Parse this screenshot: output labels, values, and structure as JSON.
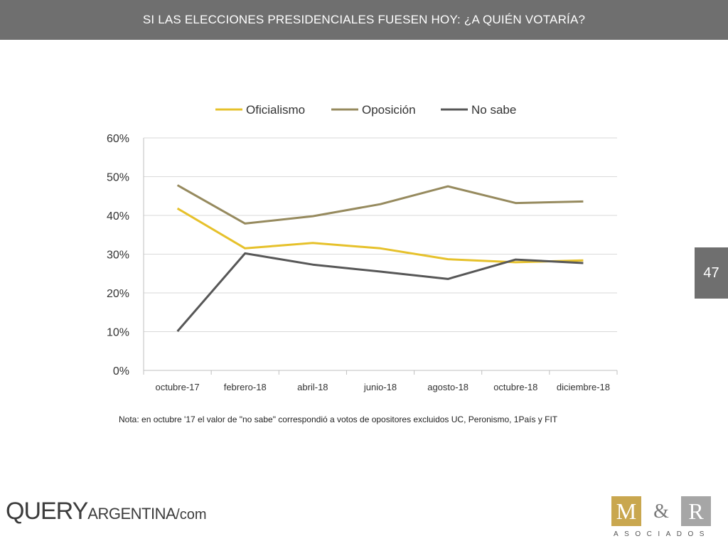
{
  "header": {
    "title": "SI LAS ELECCIONES PRESIDENCIALES FUESEN HOY: ¿A QUIÉN VOTARÍA?"
  },
  "page_number": "47",
  "note": "Nota: en octubre '17 el valor de \"no sabe\" correspondió a votos de opositores excluidos UC, Peronismo, 1País y FIT",
  "logos": {
    "query": {
      "main": "QUERY",
      "sub": "ARGENTINA",
      "domain": "/com"
    },
    "mr": {
      "m": "M",
      "amp": "&",
      "r": "R",
      "sub": "ASOCIADOS"
    }
  },
  "chart_data": {
    "type": "line",
    "title": "",
    "xlabel": "",
    "ylabel": "",
    "categories": [
      "octubre-17",
      "febrero-18",
      "abril-18",
      "junio-18",
      "agosto-18",
      "octubre-18",
      "diciembre-18"
    ],
    "ylim": [
      0,
      60
    ],
    "yticks": [
      "0%",
      "10%",
      "20%",
      "30%",
      "40%",
      "50%",
      "60%"
    ],
    "grid": true,
    "legend": "top",
    "series": [
      {
        "name": "Oficialismo",
        "color": "#e6c12b",
        "values": [
          41.8,
          31.5,
          32.9,
          31.5,
          28.7,
          27.9,
          28.4
        ]
      },
      {
        "name": "Oposición",
        "color": "#968a5e",
        "values": [
          47.8,
          37.9,
          39.8,
          42.9,
          47.5,
          43.2,
          43.6
        ]
      },
      {
        "name": "No sabe",
        "color": "#575757",
        "values": [
          10.1,
          30.2,
          27.3,
          25.5,
          23.6,
          28.6,
          27.7
        ]
      }
    ]
  }
}
